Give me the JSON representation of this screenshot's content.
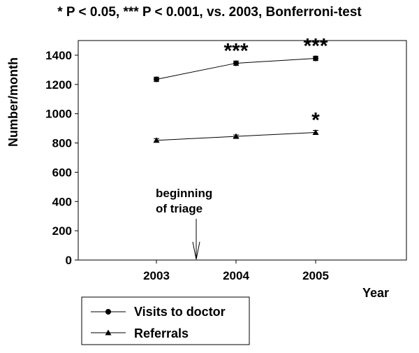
{
  "chart_data": {
    "type": "line",
    "title": "* P < 0.05, *** P < 0.001, vs. 2003, Bonferroni-test",
    "xlabel": "Year",
    "ylabel": "Number/month",
    "categories": [
      "2003",
      "2004",
      "2005"
    ],
    "ylim": [
      0,
      1500
    ],
    "yticks": [
      "0",
      "200",
      "400",
      "600",
      "800",
      "1000",
      "1200",
      "1400"
    ],
    "grid": false,
    "legend_position": "bottom-left",
    "series": [
      {
        "name": "Visits to doctor",
        "marker": "circle",
        "values": [
          1235,
          1345,
          1378
        ],
        "errors": [
          15,
          15,
          15
        ],
        "significance": [
          "",
          "***",
          "***"
        ]
      },
      {
        "name": "Referrals",
        "marker": "triangle",
        "values": [
          818,
          845,
          872
        ],
        "errors": [
          12,
          10,
          14
        ],
        "significance": [
          "",
          "",
          "*"
        ]
      }
    ],
    "annotation": {
      "line1": "beginning",
      "line2": "of triage",
      "x_between": [
        "2003",
        "2004"
      ]
    }
  }
}
